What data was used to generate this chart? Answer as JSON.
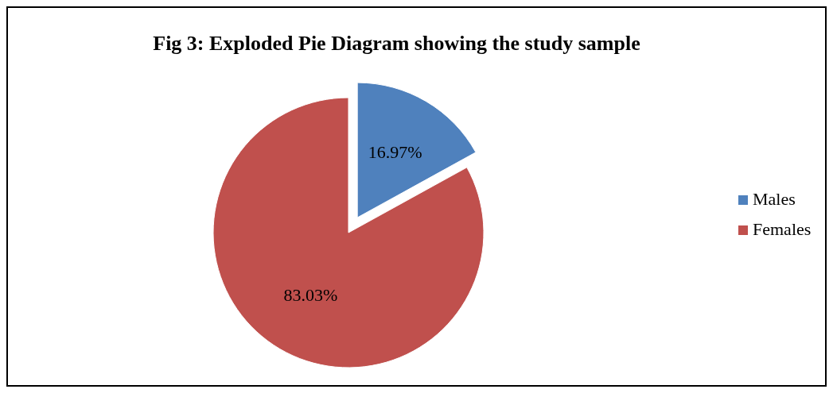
{
  "chart_data": {
    "type": "pie",
    "title": "Fig 3: Exploded Pie Diagram showing the study sample",
    "categories": [
      "Males",
      "Females"
    ],
    "values": [
      16.97,
      83.03
    ],
    "colors": [
      "#4f81bd",
      "#c0504d"
    ],
    "value_labels": [
      "16.97%",
      "83.03%"
    ],
    "legend": "right"
  }
}
